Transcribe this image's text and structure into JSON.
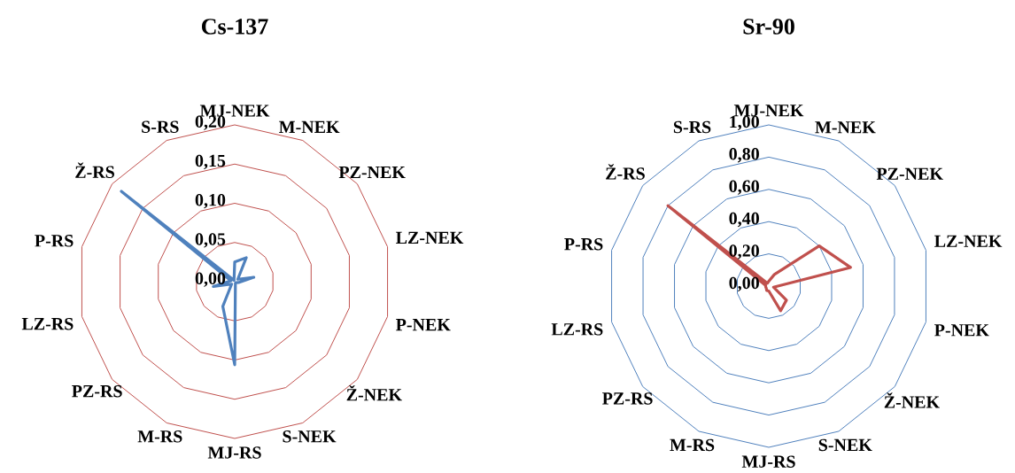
{
  "chart_data": [
    {
      "type": "radar",
      "title": "Cs-137",
      "categories": [
        "MJ-NEK",
        "M-NEK",
        "PZ-NEK",
        "LZ-NEK",
        "P-NEK",
        "Ž-NEK",
        "S-NEK",
        "MJ-RS",
        "M-RS",
        "PZ-RS",
        "LZ-RS",
        "P-RS",
        "Ž-RS",
        "S-RS"
      ],
      "series": [
        {
          "color": "#4f81bd",
          "values": [
            0.025,
            0.034,
            0.005,
            0.025,
            0.005,
            0.002,
            0.002,
            0.106,
            0.035,
            0.005,
            0.028,
            0.005,
            0.185,
            0.002
          ]
        }
      ],
      "ylim": [
        0,
        0.2
      ],
      "yticks": [
        {
          "value": 0,
          "label": "0,00"
        },
        {
          "value": 0.05,
          "label": "0,05"
        },
        {
          "value": 0.1,
          "label": "0,10"
        },
        {
          "value": 0.15,
          "label": "0,15"
        },
        {
          "value": 0.2,
          "label": "0,20"
        }
      ],
      "grid": true
    },
    {
      "type": "radar",
      "title": "Sr-90",
      "categories": [
        "MJ-NEK",
        "M-NEK",
        "PZ-NEK",
        "LZ-NEK",
        "P-NEK",
        "Ž-NEK",
        "S-NEK",
        "MJ-RS",
        "M-RS",
        "PZ-RS",
        "LZ-RS",
        "P-RS",
        "Ž-RS",
        "S-RS"
      ],
      "series": [
        {
          "color": "#c0504d",
          "values": [
            0.03,
            0.08,
            0.4,
            0.52,
            0.03,
            0.14,
            0.17,
            0.03,
            0.03,
            0.02,
            0.02,
            0.02,
            0.8,
            0.02
          ]
        }
      ],
      "ylim": [
        0,
        1
      ],
      "yticks": [
        {
          "value": 0,
          "label": "0,00"
        },
        {
          "value": 0.2,
          "label": "0,20"
        },
        {
          "value": 0.4,
          "label": "0,40"
        },
        {
          "value": 0.6,
          "label": "0,60"
        },
        {
          "value": 0.8,
          "label": "0,80"
        },
        {
          "value": 1,
          "label": "1,00"
        }
      ],
      "grid": true
    }
  ]
}
